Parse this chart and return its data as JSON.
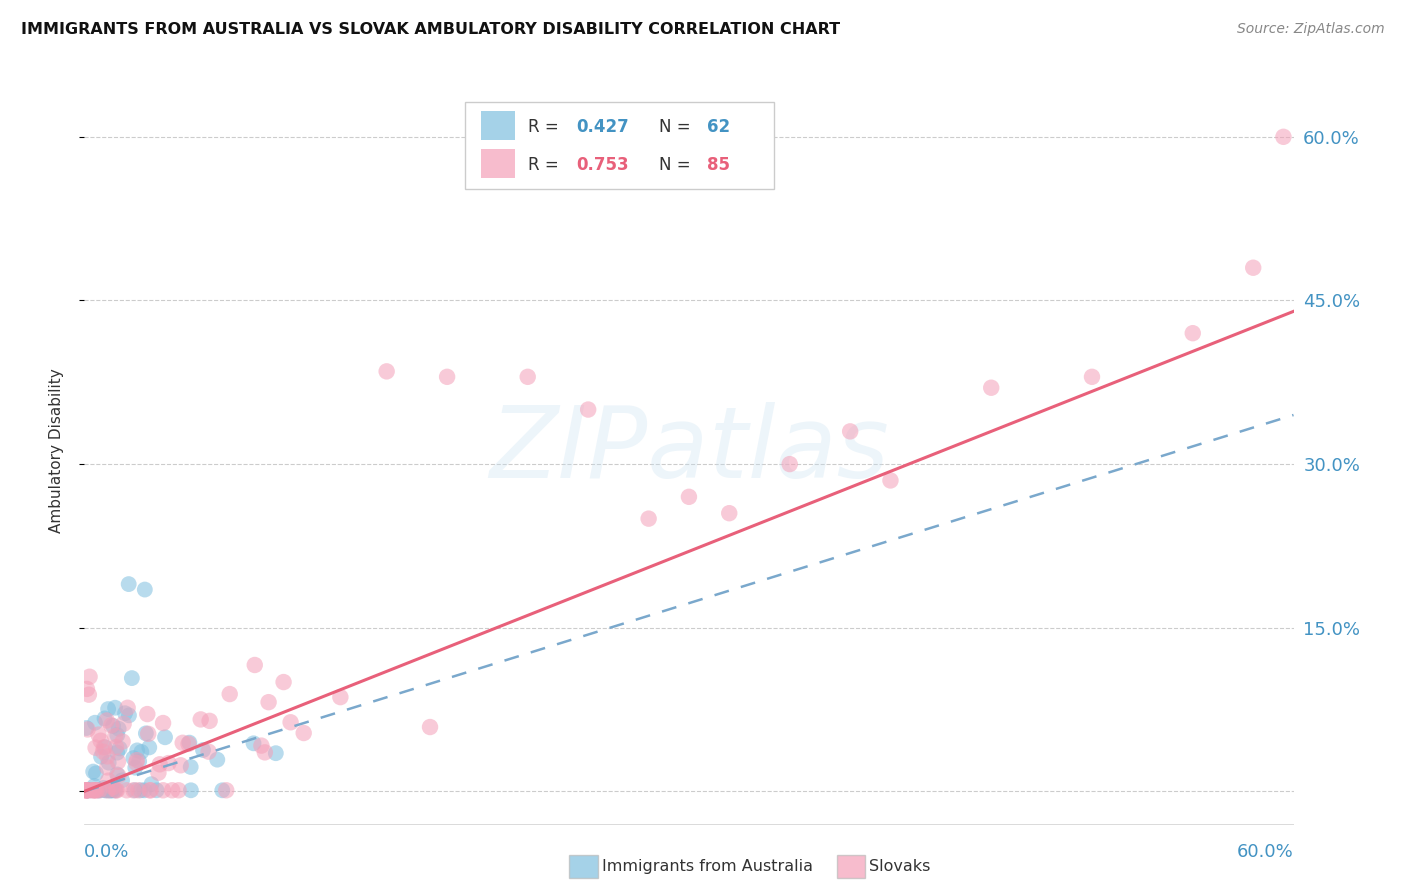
{
  "title": "IMMIGRANTS FROM AUSTRALIA VS SLOVAK AMBULATORY DISABILITY CORRELATION CHART",
  "source": "Source: ZipAtlas.com",
  "ylabel": "Ambulatory Disability",
  "ytick_labels": [
    "",
    "15.0%",
    "30.0%",
    "45.0%",
    "60.0%"
  ],
  "ytick_positions": [
    0.0,
    0.15,
    0.3,
    0.45,
    0.6
  ],
  "xlim": [
    0.0,
    0.6
  ],
  "ylim": [
    -0.035,
    0.66
  ],
  "color_blue": "#7fbfdf",
  "color_pink": "#f4a0b8",
  "color_blue_line": "#7aa8cc",
  "color_pink_line": "#e8607a",
  "color_blue_text": "#4393c3",
  "color_pink_text": "#e8607a",
  "background_color": "#ffffff",
  "grid_color": "#cccccc",
  "aus_line_x0": 0.0,
  "aus_line_y0": 0.0,
  "aus_line_x1": 0.6,
  "aus_line_y1": 0.345,
  "slov_line_x0": 0.0,
  "slov_line_y0": 0.0,
  "slov_line_x1": 0.6,
  "slov_line_y1": 0.44
}
